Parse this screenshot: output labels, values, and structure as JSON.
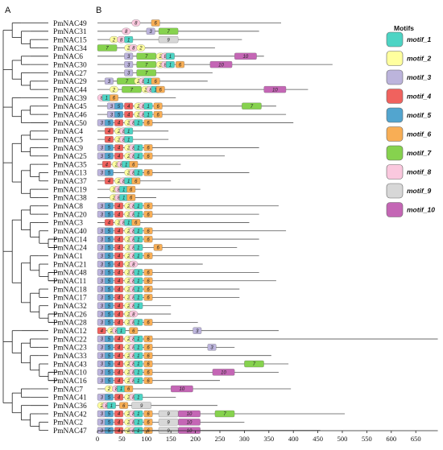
{
  "panels": {
    "a": "A",
    "b": "B"
  },
  "genes": [
    "PmNAC49",
    "PmNAC31",
    "PmNAC15",
    "PmNAC34",
    "PmNAC6",
    "PmNAC30",
    "PmNAC27",
    "PmNAC29",
    "PmNAC44",
    "PmNAC39",
    "PmNAC45",
    "PmNAC46",
    "PmNAC50",
    "PmNAC4",
    "PmNAC5",
    "PmNAC9",
    "PmNAC25",
    "PmNAC35",
    "PmNAC13",
    "PmNAC37",
    "PmNAC19",
    "PmNAC38",
    "PmNAC8",
    "PmNAC20",
    "PmNAC3",
    "PmNAC40",
    "PmNAC14",
    "PmNAC24",
    "PmNAC1",
    "PmNAC21",
    "PmNAC48",
    "PmNAC11",
    "PmNAC18",
    "PmNAC17",
    "PmNAC32",
    "PmNAC26",
    "PmNAC28",
    "PmNAC12",
    "PmNAC22",
    "PmNAC23",
    "PmNAC33",
    "PmNAC43",
    "PmNAC10",
    "PmNAC16",
    "PmNAC7",
    "PmNAC41",
    "PmNAC36",
    "PmNAC42",
    "PmNAC2",
    "PmNAC47"
  ],
  "lengths": [
    375,
    330,
    295,
    240,
    340,
    480,
    235,
    225,
    430,
    160,
    365,
    385,
    400,
    145,
    145,
    330,
    260,
    170,
    310,
    150,
    210,
    120,
    370,
    330,
    310,
    385,
    330,
    285,
    330,
    215,
    330,
    365,
    290,
    290,
    150,
    150,
    205,
    370,
    695,
    280,
    355,
    390,
    370,
    250,
    395,
    160,
    245,
    505,
    300,
    455
  ],
  "motif_ids": [
    "motif_1",
    "motif_2",
    "motif_3",
    "motif_4",
    "motif_5",
    "motif_6",
    "motif_7",
    "motif_8",
    "motif_9",
    "motif_10"
  ],
  "legend": {
    "title": "Motifs",
    "items": [
      {
        "label": "motif_1",
        "color": "#4dd4c4"
      },
      {
        "label": "motif_2",
        "color": "#ffff9e"
      },
      {
        "label": "motif_3",
        "color": "#bcb4dc"
      },
      {
        "label": "motif_4",
        "color": "#f0625e"
      },
      {
        "label": "motif_5",
        "color": "#52a5cf"
      },
      {
        "label": "motif_6",
        "color": "#f8ae55"
      },
      {
        "label": "motif_7",
        "color": "#86d24e"
      },
      {
        "label": "motif_8",
        "color": "#fac8de"
      },
      {
        "label": "motif_9",
        "color": "#d7d7d7"
      },
      {
        "label": "motif_10",
        "color": "#c466b5"
      }
    ]
  },
  "axis": {
    "ticks": [
      0,
      50,
      100,
      150,
      200,
      250,
      300,
      350,
      400,
      450,
      500,
      550,
      600,
      650
    ],
    "max": 695
  },
  "motifs": [
    [
      [
        8,
        70
      ],
      [
        6,
        110
      ]
    ],
    [
      [
        8,
        50
      ],
      [
        3,
        100
      ],
      [
        7,
        125
      ]
    ],
    [
      [
        2,
        25
      ],
      [
        8,
        40
      ],
      [
        1,
        55
      ],
      [
        9,
        125
      ]
    ],
    [
      [
        7,
        0
      ],
      [
        2,
        55
      ],
      [
        8,
        65
      ],
      [
        2,
        80
      ]
    ],
    [
      [
        3,
        55
      ],
      [
        7,
        80
      ],
      [
        2,
        120
      ],
      [
        8,
        130
      ],
      [
        1,
        140
      ],
      [
        10,
        280
      ]
    ],
    [
      [
        3,
        55
      ],
      [
        7,
        80
      ],
      [
        2,
        120
      ],
      [
        8,
        130
      ],
      [
        1,
        140
      ],
      [
        6,
        160
      ],
      [
        10,
        230
      ]
    ],
    [
      [
        3,
        55
      ],
      [
        7,
        80
      ]
    ],
    [
      [
        3,
        15
      ],
      [
        7,
        40
      ],
      [
        2,
        75
      ],
      [
        8,
        85
      ],
      [
        1,
        95
      ],
      [
        6,
        110
      ]
    ],
    [
      [
        2,
        25
      ],
      [
        7,
        50
      ],
      [
        2,
        90
      ],
      [
        8,
        100
      ],
      [
        1,
        110
      ],
      [
        6,
        120
      ],
      [
        10,
        340
      ]
    ],
    [
      [
        8,
        0
      ],
      [
        1,
        10
      ],
      [
        6,
        25
      ]
    ],
    [
      [
        3,
        20
      ],
      [
        5,
        35
      ],
      [
        4,
        55
      ],
      [
        2,
        75
      ],
      [
        8,
        85
      ],
      [
        1,
        95
      ],
      [
        6,
        115
      ],
      [
        7,
        295
      ]
    ],
    [
      [
        3,
        20
      ],
      [
        5,
        35
      ],
      [
        4,
        55
      ],
      [
        2,
        75
      ],
      [
        8,
        85
      ],
      [
        1,
        95
      ],
      [
        6,
        115
      ]
    ],
    [
      [
        3,
        0
      ],
      [
        5,
        15
      ],
      [
        4,
        35
      ],
      [
        2,
        55
      ],
      [
        8,
        65
      ],
      [
        1,
        75
      ],
      [
        6,
        95
      ]
    ],
    [
      [
        4,
        15
      ],
      [
        2,
        35
      ],
      [
        8,
        45
      ],
      [
        1,
        55
      ]
    ],
    [
      [
        4,
        15
      ],
      [
        2,
        35
      ],
      [
        8,
        45
      ],
      [
        1,
        55
      ]
    ],
    [
      [
        3,
        0
      ],
      [
        5,
        15
      ],
      [
        4,
        35
      ],
      [
        2,
        55
      ],
      [
        8,
        65
      ],
      [
        1,
        75
      ],
      [
        6,
        95
      ]
    ],
    [
      [
        3,
        0
      ],
      [
        5,
        15
      ],
      [
        4,
        35
      ],
      [
        2,
        55
      ],
      [
        8,
        65
      ],
      [
        1,
        75
      ],
      [
        6,
        95
      ]
    ],
    [
      [
        4,
        10
      ],
      [
        2,
        30
      ],
      [
        8,
        40
      ],
      [
        1,
        50
      ],
      [
        6,
        65
      ]
    ],
    [
      [
        3,
        0
      ],
      [
        5,
        15
      ],
      [
        2,
        55
      ],
      [
        8,
        65
      ],
      [
        1,
        75
      ],
      [
        6,
        95
      ]
    ],
    [
      [
        4,
        15
      ],
      [
        2,
        35
      ],
      [
        8,
        45
      ],
      [
        1,
        55
      ],
      [
        6,
        70
      ]
    ],
    [
      [
        2,
        25
      ],
      [
        8,
        35
      ],
      [
        1,
        45
      ],
      [
        6,
        60
      ]
    ],
    [
      [
        2,
        25
      ],
      [
        8,
        35
      ],
      [
        1,
        45
      ],
      [
        6,
        60
      ]
    ],
    [
      [
        3,
        0
      ],
      [
        5,
        15
      ],
      [
        4,
        35
      ],
      [
        2,
        55
      ],
      [
        8,
        65
      ],
      [
        1,
        75
      ],
      [
        6,
        95
      ]
    ],
    [
      [
        3,
        0
      ],
      [
        5,
        15
      ],
      [
        4,
        35
      ],
      [
        2,
        55
      ],
      [
        8,
        65
      ],
      [
        1,
        75
      ],
      [
        6,
        95
      ]
    ],
    [
      [
        4,
        15
      ],
      [
        2,
        35
      ],
      [
        8,
        45
      ],
      [
        1,
        55
      ],
      [
        6,
        70
      ]
    ],
    [
      [
        3,
        0
      ],
      [
        5,
        15
      ],
      [
        4,
        35
      ],
      [
        2,
        55
      ],
      [
        8,
        65
      ],
      [
        1,
        75
      ],
      [
        6,
        95
      ]
    ],
    [
      [
        3,
        0
      ],
      [
        5,
        15
      ],
      [
        4,
        35
      ],
      [
        2,
        55
      ],
      [
        8,
        65
      ],
      [
        1,
        75
      ],
      [
        6,
        95
      ]
    ],
    [
      [
        3,
        0
      ],
      [
        5,
        15
      ],
      [
        4,
        35
      ],
      [
        2,
        55
      ],
      [
        8,
        65
      ],
      [
        1,
        75
      ],
      [
        6,
        115
      ]
    ],
    [
      [
        3,
        0
      ],
      [
        5,
        15
      ],
      [
        4,
        35
      ],
      [
        2,
        55
      ],
      [
        8,
        65
      ],
      [
        1,
        75
      ],
      [
        6,
        95
      ]
    ],
    [
      [
        3,
        0
      ],
      [
        5,
        15
      ],
      [
        4,
        35
      ],
      [
        2,
        55
      ],
      [
        8,
        65
      ]
    ],
    [
      [
        3,
        0
      ],
      [
        5,
        15
      ],
      [
        4,
        35
      ],
      [
        2,
        55
      ],
      [
        8,
        65
      ],
      [
        1,
        75
      ],
      [
        6,
        95
      ]
    ],
    [
      [
        3,
        0
      ],
      [
        5,
        15
      ],
      [
        4,
        35
      ],
      [
        2,
        55
      ],
      [
        8,
        65
      ],
      [
        1,
        75
      ],
      [
        6,
        95
      ]
    ],
    [
      [
        3,
        0
      ],
      [
        5,
        15
      ],
      [
        4,
        35
      ],
      [
        2,
        55
      ],
      [
        8,
        65
      ],
      [
        1,
        75
      ],
      [
        6,
        95
      ]
    ],
    [
      [
        3,
        0
      ],
      [
        5,
        15
      ],
      [
        4,
        35
      ],
      [
        2,
        55
      ],
      [
        8,
        65
      ],
      [
        1,
        75
      ],
      [
        6,
        95
      ]
    ],
    [
      [
        3,
        0
      ],
      [
        5,
        15
      ],
      [
        4,
        35
      ],
      [
        2,
        55
      ],
      [
        8,
        65
      ],
      [
        1,
        75
      ]
    ],
    [
      [
        3,
        0
      ],
      [
        5,
        15
      ],
      [
        4,
        35
      ],
      [
        2,
        55
      ],
      [
        8,
        65
      ]
    ],
    [
      [
        3,
        0
      ],
      [
        5,
        15
      ],
      [
        4,
        35
      ],
      [
        2,
        55
      ],
      [
        8,
        65
      ],
      [
        1,
        75
      ],
      [
        6,
        95
      ]
    ],
    [
      [
        4,
        0
      ],
      [
        2,
        20
      ],
      [
        8,
        30
      ],
      [
        1,
        40
      ],
      [
        6,
        65
      ],
      [
        3,
        195
      ]
    ],
    [
      [
        3,
        0
      ],
      [
        5,
        15
      ],
      [
        4,
        35
      ],
      [
        2,
        55
      ],
      [
        8,
        65
      ],
      [
        1,
        75
      ],
      [
        6,
        95
      ]
    ],
    [
      [
        3,
        0
      ],
      [
        5,
        15
      ],
      [
        4,
        35
      ],
      [
        2,
        55
      ],
      [
        8,
        65
      ],
      [
        1,
        75
      ],
      [
        6,
        95
      ],
      [
        3,
        225
      ]
    ],
    [
      [
        3,
        0
      ],
      [
        5,
        15
      ],
      [
        4,
        35
      ],
      [
        2,
        55
      ],
      [
        8,
        65
      ],
      [
        1,
        75
      ],
      [
        6,
        95
      ]
    ],
    [
      [
        3,
        0
      ],
      [
        5,
        15
      ],
      [
        4,
        35
      ],
      [
        2,
        55
      ],
      [
        8,
        65
      ],
      [
        1,
        75
      ],
      [
        6,
        95
      ],
      [
        7,
        300
      ]
    ],
    [
      [
        3,
        0
      ],
      [
        5,
        15
      ],
      [
        4,
        35
      ],
      [
        2,
        55
      ],
      [
        8,
        65
      ],
      [
        1,
        75
      ],
      [
        6,
        95
      ],
      [
        10,
        235
      ]
    ],
    [
      [
        3,
        0
      ],
      [
        5,
        15
      ],
      [
        4,
        35
      ],
      [
        2,
        55
      ],
      [
        8,
        65
      ],
      [
        1,
        75
      ],
      [
        6,
        95
      ]
    ],
    [
      [
        2,
        15
      ],
      [
        8,
        30
      ],
      [
        1,
        40
      ],
      [
        6,
        55
      ],
      [
        10,
        150
      ]
    ],
    [
      [
        3,
        0
      ],
      [
        5,
        15
      ],
      [
        4,
        35
      ],
      [
        2,
        55
      ],
      [
        8,
        65
      ],
      [
        1,
        75
      ]
    ],
    [
      [
        2,
        0
      ],
      [
        8,
        10
      ],
      [
        1,
        20
      ],
      [
        6,
        45
      ],
      [
        9,
        70
      ]
    ],
    [
      [
        3,
        0
      ],
      [
        5,
        15
      ],
      [
        4,
        35
      ],
      [
        2,
        55
      ],
      [
        8,
        65
      ],
      [
        1,
        75
      ],
      [
        6,
        95
      ],
      [
        9,
        125
      ],
      [
        10,
        165
      ],
      [
        7,
        240
      ]
    ],
    [
      [
        3,
        0
      ],
      [
        5,
        15
      ],
      [
        4,
        35
      ],
      [
        2,
        55
      ],
      [
        8,
        65
      ],
      [
        1,
        75
      ],
      [
        6,
        95
      ],
      [
        9,
        125
      ],
      [
        10,
        165
      ]
    ],
    [
      [
        3,
        0
      ],
      [
        5,
        15
      ],
      [
        4,
        35
      ],
      [
        2,
        55
      ],
      [
        8,
        65
      ],
      [
        1,
        75
      ],
      [
        6,
        95
      ],
      [
        9,
        125
      ],
      [
        10,
        165
      ]
    ]
  ]
}
